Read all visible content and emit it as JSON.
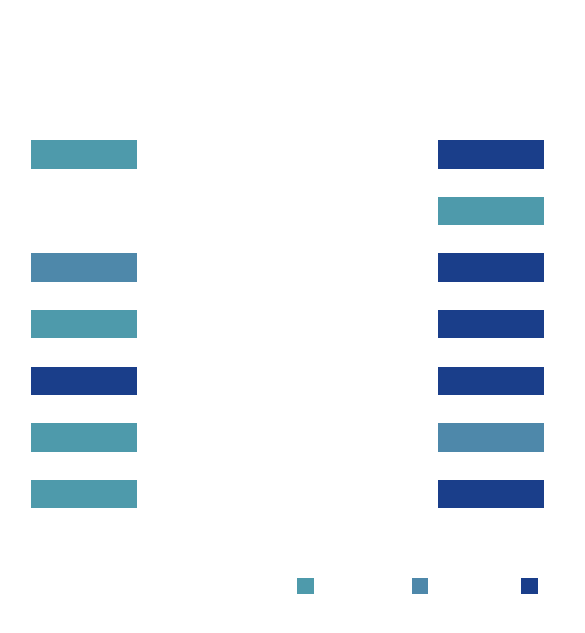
{
  "colors": {
    "teal": "#4e9aab",
    "steel": "#4e88aa",
    "navy": "#1a3e8a"
  },
  "left_column": [
    {
      "color": "teal"
    },
    null,
    {
      "color": "steel"
    },
    {
      "color": "teal"
    },
    {
      "color": "navy"
    },
    {
      "color": "teal"
    },
    {
      "color": "teal"
    }
  ],
  "right_column": [
    {
      "color": "navy"
    },
    {
      "color": "teal"
    },
    {
      "color": "navy"
    },
    {
      "color": "navy"
    },
    {
      "color": "navy"
    },
    {
      "color": "steel"
    },
    {
      "color": "navy"
    }
  ],
  "legend": [
    {
      "color": "teal"
    },
    {
      "color": "steel"
    },
    {
      "color": "navy"
    }
  ]
}
